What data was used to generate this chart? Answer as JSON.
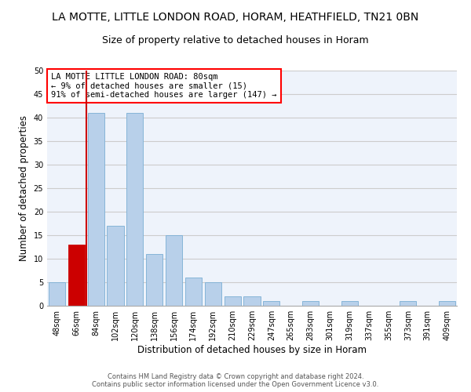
{
  "title1": "LA MOTTE, LITTLE LONDON ROAD, HORAM, HEATHFIELD, TN21 0BN",
  "title2": "Size of property relative to detached houses in Horam",
  "xlabel": "Distribution of detached houses by size in Horam",
  "ylabel": "Number of detached properties",
  "categories": [
    "48sqm",
    "66sqm",
    "84sqm",
    "102sqm",
    "120sqm",
    "138sqm",
    "156sqm",
    "174sqm",
    "192sqm",
    "210sqm",
    "229sqm",
    "247sqm",
    "265sqm",
    "283sqm",
    "301sqm",
    "319sqm",
    "337sqm",
    "355sqm",
    "373sqm",
    "391sqm",
    "409sqm"
  ],
  "values": [
    5,
    13,
    41,
    17,
    41,
    11,
    15,
    6,
    5,
    2,
    2,
    1,
    0,
    1,
    0,
    1,
    0,
    0,
    1,
    0,
    1
  ],
  "bar_color": "#b8d0ea",
  "bar_edge_color": "#7aaed4",
  "highlight_bar_index": 1,
  "highlight_color": "#cc0000",
  "highlight_edge_color": "#cc0000",
  "vline_color": "#cc0000",
  "ylim": [
    0,
    50
  ],
  "yticks": [
    0,
    5,
    10,
    15,
    20,
    25,
    30,
    35,
    40,
    45,
    50
  ],
  "grid_color": "#cccccc",
  "background_color": "#eef3fb",
  "annotation_text": "LA MOTTE LITTLE LONDON ROAD: 80sqm\n← 9% of detached houses are smaller (15)\n91% of semi-detached houses are larger (147) →",
  "footer_line1": "Contains HM Land Registry data © Crown copyright and database right 2024.",
  "footer_line2": "Contains public sector information licensed under the Open Government Licence v3.0.",
  "title_fontsize": 10,
  "subtitle_fontsize": 9,
  "tick_fontsize": 7,
  "ylabel_fontsize": 8.5,
  "xlabel_fontsize": 8.5,
  "annotation_fontsize": 7.5
}
